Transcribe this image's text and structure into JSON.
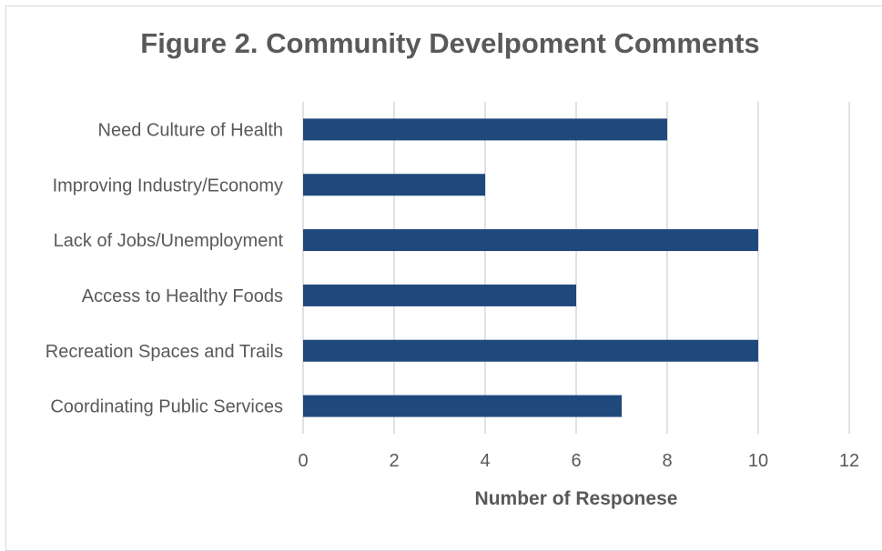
{
  "chart_data": {
    "type": "bar",
    "orientation": "horizontal",
    "title": "Figure 2. Community Develpoment Comments",
    "xlabel": "Number of Responese",
    "ylabel": "",
    "categories": [
      "Need Culture of Health",
      "Improving Industry/Economy",
      "Lack of Jobs/Unemployment",
      "Access to Healthy Foods",
      "Recreation Spaces and Trails",
      "Coordinating Public Services"
    ],
    "values": [
      8,
      4,
      10,
      6,
      10,
      7
    ],
    "xlim": [
      0,
      12
    ],
    "xticks": [
      "0",
      "2",
      "4",
      "6",
      "8",
      "10",
      "12"
    ],
    "grid": true,
    "legend": "none",
    "bar_color": "#1f497d",
    "grid_color": "#d9d9d9",
    "text_color": "#595959"
  }
}
